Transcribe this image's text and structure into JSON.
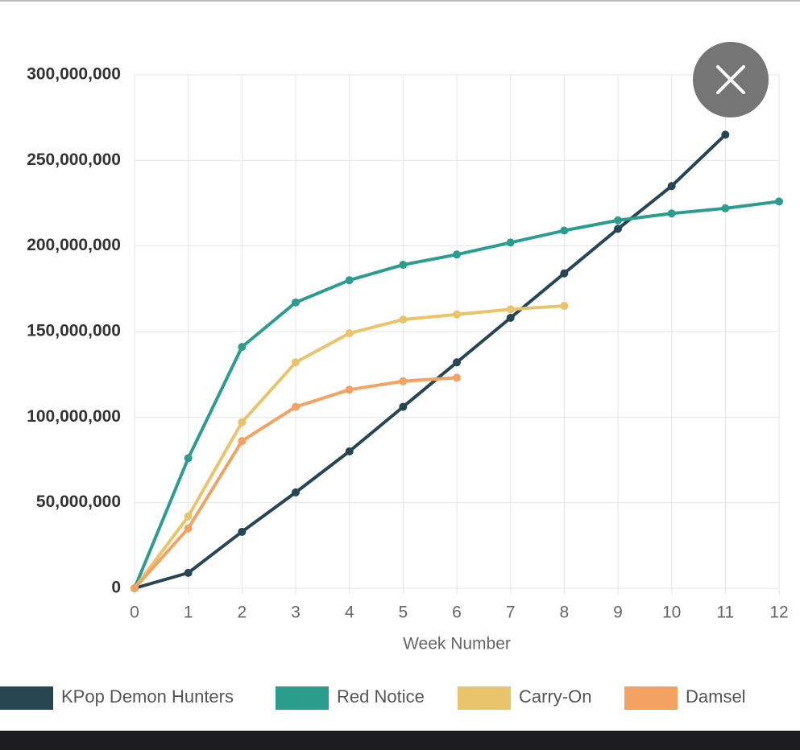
{
  "chart_data": {
    "type": "line",
    "x_label": "Week Number",
    "x": [
      0,
      1,
      2,
      3,
      4,
      5,
      6,
      7,
      8,
      9,
      10,
      11,
      12
    ],
    "xlim": [
      0,
      12
    ],
    "xticks": [
      0,
      1,
      2,
      3,
      4,
      5,
      6,
      7,
      8,
      9,
      10,
      11,
      12
    ],
    "ylim": [
      0,
      300000000
    ],
    "yticks": [
      0,
      {
        "value": 50000000,
        "label": "50,000,000"
      },
      {
        "value": 100000000,
        "label": "100,000,000"
      },
      {
        "value": 150000000,
        "label": "150,000,000"
      },
      {
        "value": 200000000,
        "label": "200,000,000"
      },
      {
        "value": 250000000,
        "label": "250,000,000"
      },
      {
        "value": 300000000,
        "label": "300,000,000"
      }
    ],
    "grid": true,
    "legend": "bottom",
    "series": [
      {
        "name": "KPop Demon Hunters",
        "color": "#264653",
        "values": [
          0,
          9000000,
          33000000,
          56000000,
          80000000,
          106000000,
          132000000,
          158000000,
          184000000,
          210000000,
          235000000,
          265000000,
          null
        ]
      },
      {
        "name": "Red Notice",
        "color": "#2a9d8f",
        "values": [
          0,
          76000000,
          141000000,
          167000000,
          180000000,
          189000000,
          195000000,
          202000000,
          209000000,
          215000000,
          219000000,
          222000000,
          226000000
        ]
      },
      {
        "name": "Carry-On",
        "color": "#e9c46a",
        "values": [
          0,
          42000000,
          97000000,
          132000000,
          149000000,
          157000000,
          160000000,
          163000000,
          165000000,
          null,
          null,
          null,
          null
        ]
      },
      {
        "name": "Damsel",
        "color": "#f4a261",
        "values": [
          0,
          35000000,
          86000000,
          106000000,
          116000000,
          121000000,
          123000000,
          null,
          null,
          null,
          null,
          null,
          null
        ]
      }
    ]
  }
}
